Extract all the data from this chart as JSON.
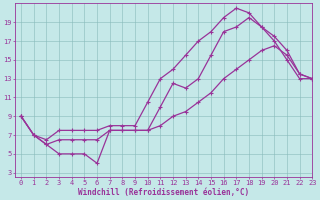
{
  "xlabel": "Windchill (Refroidissement éolien,°C)",
  "bg_color": "#c5e8e8",
  "grid_color": "#88bbbb",
  "line_color": "#993399",
  "spine_color": "#993399",
  "xlim": [
    -0.5,
    23
  ],
  "ylim": [
    2.5,
    21
  ],
  "xticks": [
    0,
    1,
    2,
    3,
    4,
    5,
    6,
    7,
    8,
    9,
    10,
    11,
    12,
    13,
    14,
    15,
    16,
    17,
    18,
    19,
    20,
    21,
    22,
    23
  ],
  "yticks": [
    3,
    5,
    7,
    9,
    11,
    13,
    15,
    17,
    19
  ],
  "series": [
    {
      "x": [
        0,
        1,
        2,
        3,
        4,
        5,
        6,
        7,
        8,
        9,
        10,
        11,
        12,
        13,
        14,
        15,
        16,
        17,
        18,
        19,
        20,
        21,
        22,
        23
      ],
      "y": [
        9,
        7,
        6.5,
        7.5,
        7.5,
        7.5,
        7.5,
        8,
        8,
        8,
        10.5,
        13,
        14,
        15.5,
        17,
        18,
        19.5,
        20.5,
        20,
        18.5,
        17.5,
        16,
        13.5,
        13
      ]
    },
    {
      "x": [
        0,
        1,
        2,
        3,
        4,
        5,
        6,
        7,
        8,
        9,
        10,
        11,
        12,
        13,
        14,
        15,
        16,
        17,
        18,
        19,
        20,
        21,
        22,
        23
      ],
      "y": [
        9,
        7,
        6,
        5,
        5,
        5,
        4,
        7.5,
        7.5,
        7.5,
        7.5,
        10,
        12.5,
        12,
        13,
        15.5,
        18,
        18.5,
        19.5,
        18.5,
        17,
        15,
        13,
        13
      ]
    },
    {
      "x": [
        0,
        1,
        2,
        3,
        4,
        5,
        6,
        7,
        8,
        9,
        10,
        11,
        12,
        13,
        14,
        15,
        16,
        17,
        18,
        19,
        20,
        21,
        22,
        23
      ],
      "y": [
        9,
        7,
        6,
        6.5,
        6.5,
        6.5,
        6.5,
        7.5,
        7.5,
        7.5,
        7.5,
        8,
        9,
        9.5,
        10.5,
        11.5,
        13,
        14,
        15,
        16,
        16.5,
        15.5,
        13.5,
        13
      ]
    }
  ],
  "tick_fontsize": 5,
  "xlabel_fontsize": 5.5,
  "linewidth": 0.9,
  "markersize": 2.5,
  "markeredgewidth": 0.8
}
